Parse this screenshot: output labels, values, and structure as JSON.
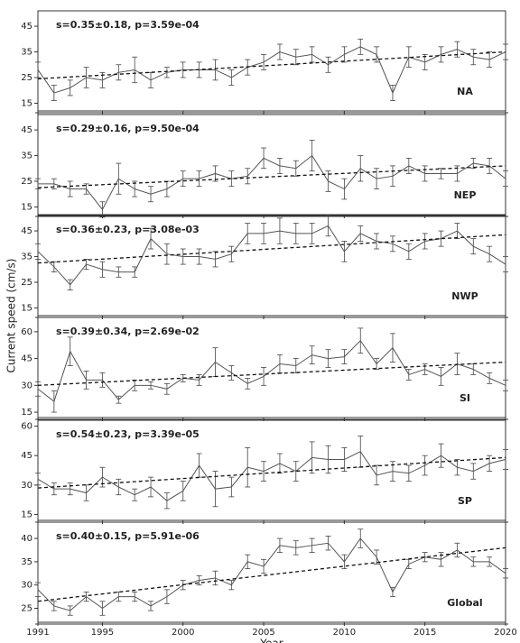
{
  "chart_data": [
    {
      "type": "line",
      "annotation": "s=0.35±0.18, p=3.59e-04",
      "region": "NA",
      "color": "#555555",
      "x": [
        1991,
        1992,
        1993,
        1994,
        1995,
        1996,
        1997,
        1998,
        1999,
        2000,
        2001,
        2002,
        2003,
        2004,
        2005,
        2006,
        2007,
        2008,
        2009,
        2010,
        2011,
        2012,
        2013,
        2014,
        2015,
        2016,
        2017,
        2018,
        2019,
        2020
      ],
      "values": [
        28,
        19,
        21,
        25,
        24,
        27,
        28,
        24,
        27,
        28,
        28,
        28,
        25,
        29,
        31,
        35,
        33,
        34,
        30,
        34,
        37,
        34,
        19,
        33,
        31,
        34,
        36,
        33,
        32,
        35
      ],
      "errors": [
        3,
        3,
        3,
        4,
        3,
        3,
        5,
        3,
        2,
        3,
        3,
        4,
        3,
        3,
        3,
        3,
        3,
        3,
        3,
        3,
        3,
        3,
        3,
        4,
        3,
        3,
        3,
        3,
        3,
        3
      ],
      "trend": [
        24.5,
        35
      ],
      "xlim": [
        1991,
        2020
      ],
      "xticks": [
        1991,
        1995,
        2000,
        2005,
        2010,
        2015,
        2020
      ],
      "ylim": [
        12,
        51
      ],
      "yticks": [
        15,
        25,
        35,
        45
      ]
    },
    {
      "type": "line",
      "annotation": "s=0.29±0.16, p=9.50e-04",
      "region": "NEP",
      "color": "#555555",
      "x": [
        1991,
        1992,
        1993,
        1994,
        1995,
        1996,
        1997,
        1998,
        1999,
        2000,
        2001,
        2002,
        2003,
        2004,
        2005,
        2006,
        2007,
        2008,
        2009,
        2010,
        2011,
        2012,
        2013,
        2014,
        2015,
        2016,
        2017,
        2018,
        2019,
        2020
      ],
      "values": [
        24,
        24,
        22,
        22,
        14,
        26,
        22,
        20,
        22,
        26,
        26,
        28,
        26,
        27,
        34,
        31,
        30,
        35,
        25,
        22,
        30,
        26,
        27,
        31,
        28,
        28,
        28,
        32,
        31,
        26
      ],
      "errors": [
        2,
        2,
        3,
        2,
        3,
        6,
        3,
        3,
        3,
        3,
        3,
        3,
        3,
        3,
        4,
        3,
        3,
        6,
        4,
        4,
        5,
        4,
        4,
        3,
        3,
        2,
        3,
        2,
        3,
        3
      ],
      "trend": [
        22.5,
        31
      ],
      "xlim": [
        1991,
        2020
      ],
      "xticks": [
        1991,
        1995,
        2000,
        2005,
        2010,
        2015,
        2020
      ],
      "ylim": [
        12,
        51
      ],
      "yticks": [
        15,
        25,
        35,
        45
      ]
    },
    {
      "type": "line",
      "annotation": "s=0.36±0.23, p=3.08e-03",
      "region": "NWP",
      "color": "#555555",
      "x": [
        1991,
        1992,
        1993,
        1994,
        1995,
        1996,
        1997,
        1998,
        1999,
        2000,
        2001,
        2002,
        2003,
        2004,
        2005,
        2006,
        2007,
        2008,
        2009,
        2010,
        2011,
        2012,
        2013,
        2014,
        2015,
        2016,
        2017,
        2018,
        2019,
        2020
      ],
      "values": [
        37,
        31,
        24,
        32,
        30,
        29,
        29,
        42,
        36,
        35,
        35,
        34,
        36,
        44,
        44,
        45,
        44,
        44,
        47,
        37,
        44,
        41,
        40,
        37,
        41,
        42,
        45,
        39,
        36,
        32
      ],
      "errors": [
        3,
        2,
        2,
        2,
        3,
        2,
        2,
        4,
        4,
        3,
        3,
        3,
        3,
        4,
        4,
        5,
        4,
        4,
        4,
        4,
        3,
        3,
        3,
        3,
        3,
        3,
        3,
        3,
        3,
        3
      ],
      "trend": [
        32.5,
        43.5
      ],
      "xlim": [
        1991,
        2020
      ],
      "xticks": [
        1991,
        1995,
        2000,
        2005,
        2010,
        2015,
        2020
      ],
      "ylim": [
        12,
        51
      ],
      "yticks": [
        15,
        25,
        35,
        45
      ]
    },
    {
      "type": "line",
      "annotation": "s=0.39±0.34, p=2.69e-02",
      "region": "SI",
      "color": "#555555",
      "x": [
        1991,
        1992,
        1993,
        1994,
        1995,
        1996,
        1997,
        1998,
        1999,
        2000,
        2001,
        2002,
        2003,
        2004,
        2005,
        2006,
        2007,
        2008,
        2009,
        2010,
        2011,
        2012,
        2013,
        2014,
        2015,
        2016,
        2017,
        2018,
        2019,
        2020
      ],
      "values": [
        28,
        21,
        49,
        33,
        33,
        22,
        30,
        30,
        28,
        34,
        33,
        43,
        37,
        31,
        35,
        42,
        41,
        47,
        45,
        46,
        55,
        42,
        51,
        36,
        39,
        35,
        42,
        39,
        34,
        30
      ],
      "errors": [
        4,
        6,
        8,
        5,
        4,
        2,
        3,
        2,
        3,
        2,
        3,
        8,
        4,
        3,
        5,
        5,
        4,
        5,
        5,
        4,
        7,
        3,
        8,
        3,
        3,
        5,
        6,
        3,
        3,
        3
      ],
      "trend": [
        30,
        43
      ],
      "xlim": [
        1991,
        2020
      ],
      "xticks": [
        1991,
        1995,
        2000,
        2005,
        2010,
        2015,
        2020
      ],
      "ylim": [
        12,
        68
      ],
      "yticks": [
        15,
        30,
        45,
        60
      ]
    },
    {
      "type": "line",
      "annotation": "s=0.54±0.23, p=3.39e-05",
      "region": "SP",
      "color": "#555555",
      "x": [
        1991,
        1992,
        1993,
        1994,
        1995,
        1996,
        1997,
        1998,
        1999,
        2000,
        2001,
        2002,
        2003,
        2004,
        2005,
        2006,
        2007,
        2008,
        2009,
        2010,
        2011,
        2012,
        2013,
        2014,
        2015,
        2016,
        2017,
        2018,
        2019,
        2020
      ],
      "values": [
        33,
        28,
        28,
        26,
        34,
        29,
        25,
        29,
        22,
        27,
        40,
        28,
        29,
        39,
        37,
        41,
        37,
        44,
        43,
        43,
        47,
        35,
        37,
        36,
        40,
        45,
        39,
        37,
        41,
        43
      ],
      "errors": [
        3,
        3,
        3,
        4,
        5,
        4,
        3,
        5,
        4,
        5,
        6,
        9,
        5,
        10,
        5,
        5,
        5,
        8,
        7,
        6,
        8,
        5,
        5,
        4,
        5,
        6,
        4,
        4,
        4,
        5
      ],
      "trend": [
        28.5,
        44
      ],
      "xlim": [
        1991,
        2020
      ],
      "xticks": [
        1991,
        1995,
        2000,
        2005,
        2010,
        2015,
        2020
      ],
      "ylim": [
        12,
        63
      ],
      "yticks": [
        15,
        30,
        45,
        60
      ]
    },
    {
      "type": "line",
      "annotation": "s=0.40±0.15, p=5.91e-06",
      "region": "Global",
      "color": "#555555",
      "x": [
        1991,
        1992,
        1993,
        1994,
        1995,
        1996,
        1997,
        1998,
        1999,
        2000,
        2001,
        2002,
        2003,
        2004,
        2005,
        2006,
        2007,
        2008,
        2009,
        2010,
        2011,
        2012,
        2013,
        2014,
        2015,
        2016,
        2017,
        2018,
        2019,
        2020
      ],
      "values": [
        29,
        25.5,
        24.5,
        27.5,
        25,
        27.5,
        27.5,
        25.5,
        27.5,
        30,
        31,
        31.5,
        30,
        35,
        34,
        38.5,
        38,
        38.5,
        39,
        35,
        40,
        36,
        28.5,
        34.5,
        36,
        35.5,
        37.5,
        35,
        35,
        32.5
      ],
      "errors": [
        1.5,
        1,
        1,
        1,
        1.5,
        1,
        1,
        1,
        1.5,
        1,
        1,
        1.5,
        1,
        1.5,
        1.5,
        1.5,
        1.5,
        1.5,
        1.5,
        1.5,
        2,
        1.5,
        1,
        1,
        1,
        1.5,
        1.5,
        1,
        1,
        1
      ],
      "trend": [
        26.5,
        38
      ],
      "xlim": [
        1991,
        2020
      ],
      "xticks": [
        1991,
        1995,
        2000,
        2005,
        2010,
        2015,
        2020
      ],
      "ylim": [
        22,
        43.5
      ],
      "yticks": [
        25,
        30,
        35,
        40
      ],
      "xlabel": "Year"
    }
  ],
  "ylabel": "Current speed (cm/s)"
}
